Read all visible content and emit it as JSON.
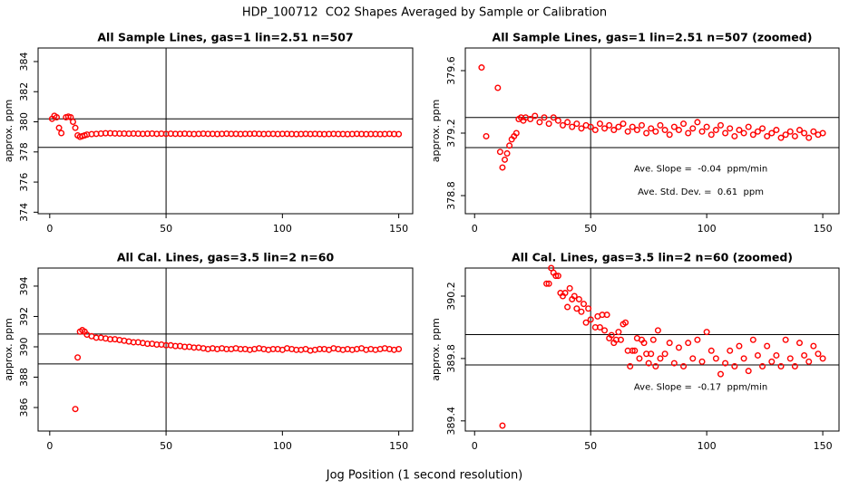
{
  "title": "HDP_100712  CO2 Shapes Averaged by Sample or Calibration",
  "x_label": "Jog Position (1 second resolution)",
  "chart_data": [
    {
      "type": "scatter",
      "title": "All Sample Lines, gas=1 lin=2.51 n=507",
      "y_label": "approx. ppm",
      "xlim": [
        -5,
        156
      ],
      "ylim": [
        373.9,
        384.9
      ],
      "xticks": [
        0,
        50,
        100,
        150
      ],
      "yticks": [
        374,
        376,
        378,
        380,
        382,
        384
      ],
      "reference_lines": {
        "v": [
          50
        ],
        "h": [
          380.2,
          378.3
        ]
      },
      "x": [
        1,
        2,
        3,
        4,
        5,
        7,
        8,
        9,
        10,
        11,
        12,
        13,
        14,
        15,
        16,
        18,
        20,
        22,
        24,
        26,
        28,
        30,
        32,
        34,
        36,
        38,
        40,
        42,
        44,
        46,
        48,
        50,
        52,
        54,
        56,
        58,
        60,
        62,
        64,
        66,
        68,
        70,
        72,
        74,
        76,
        78,
        80,
        82,
        84,
        86,
        88,
        90,
        92,
        94,
        96,
        98,
        100,
        102,
        104,
        106,
        108,
        110,
        112,
        114,
        116,
        118,
        120,
        122,
        124,
        126,
        128,
        130,
        132,
        134,
        136,
        138,
        140,
        142,
        144,
        146,
        148,
        150
      ],
      "series": [
        {
          "color": "#ff0000",
          "values": [
            380.2,
            380.4,
            380.3,
            379.6,
            379.25,
            380.3,
            380.35,
            380.3,
            380.0,
            379.6,
            379.1,
            379.0,
            379.05,
            379.1,
            379.15,
            379.18,
            379.2,
            379.22,
            379.24,
            379.24,
            379.23,
            379.22,
            379.22,
            379.21,
            379.22,
            379.21,
            379.2,
            379.21,
            379.22,
            379.2,
            379.21,
            379.2,
            379.21,
            379.2,
            379.2,
            379.21,
            379.2,
            379.19,
            379.2,
            379.21,
            379.2,
            379.2,
            379.19,
            379.2,
            379.21,
            379.2,
            379.2,
            379.19,
            379.2,
            379.2,
            379.21,
            379.2,
            379.19,
            379.2,
            379.2,
            379.19,
            379.2,
            379.2,
            379.19,
            379.18,
            379.19,
            379.2,
            379.19,
            379.2,
            379.19,
            379.18,
            379.19,
            379.2,
            379.19,
            379.19,
            379.18,
            379.19,
            379.2,
            379.19,
            379.18,
            379.19,
            379.19,
            379.18,
            379.19,
            379.2,
            379.19,
            379.18
          ]
        }
      ],
      "annotations": []
    },
    {
      "type": "scatter",
      "title": "All Sample Lines, gas=1 lin=2.51 n=507 (zoomed)",
      "y_label": "approx. ppm",
      "xlim": [
        -4,
        157
      ],
      "ylim": [
        378.684,
        379.745
      ],
      "xticks": [
        0,
        50,
        100,
        150
      ],
      "yticks": [
        378.8,
        379.2,
        379.6
      ],
      "reference_lines": {
        "v": [
          50
        ],
        "h": [
          379.3,
          379.107
        ]
      },
      "x": [
        3,
        5,
        10,
        11,
        12,
        13,
        14,
        15,
        16,
        17,
        18,
        19,
        20,
        21,
        22,
        24,
        26,
        28,
        30,
        32,
        34,
        36,
        38,
        40,
        42,
        44,
        46,
        48,
        50,
        52,
        54,
        56,
        58,
        60,
        62,
        64,
        66,
        68,
        70,
        72,
        74,
        76,
        78,
        80,
        82,
        84,
        86,
        88,
        90,
        92,
        94,
        96,
        98,
        100,
        102,
        104,
        106,
        108,
        110,
        112,
        114,
        116,
        118,
        120,
        122,
        124,
        126,
        128,
        130,
        132,
        134,
        136,
        138,
        140,
        142,
        144,
        146,
        148,
        150
      ],
      "series": [
        {
          "color": "#ff0000",
          "values": [
            379.62,
            379.18,
            379.49,
            379.08,
            378.98,
            379.03,
            379.07,
            379.12,
            379.16,
            379.18,
            379.2,
            379.29,
            379.3,
            379.28,
            379.3,
            379.29,
            379.31,
            379.27,
            379.3,
            379.26,
            379.3,
            379.28,
            379.25,
            379.27,
            379.24,
            379.26,
            379.23,
            379.25,
            379.24,
            379.22,
            379.26,
            379.23,
            379.25,
            379.22,
            379.24,
            379.26,
            379.21,
            379.24,
            379.22,
            379.25,
            379.2,
            379.23,
            379.21,
            379.25,
            379.22,
            379.19,
            379.24,
            379.22,
            379.26,
            379.2,
            379.23,
            379.27,
            379.21,
            379.24,
            379.19,
            379.22,
            379.25,
            379.2,
            379.23,
            379.18,
            379.22,
            379.2,
            379.24,
            379.19,
            379.21,
            379.23,
            379.18,
            379.2,
            379.22,
            379.17,
            379.19,
            379.21,
            379.18,
            379.22,
            379.2,
            379.17,
            379.21,
            379.19,
            379.2
          ]
        }
      ],
      "annotations": [
        "Ave. Slope =  -0.04  ppm/min",
        "Ave. Std. Dev. =  0.61  ppm"
      ]
    },
    {
      "type": "scatter",
      "title": "All Cal. Lines, gas=3.5 lin=2 n=60",
      "y_label": "approx. ppm",
      "xlim": [
        -5,
        156
      ],
      "ylim": [
        384.45,
        395.19
      ],
      "xticks": [
        0,
        50,
        100,
        150
      ],
      "yticks": [
        386,
        388,
        390,
        392,
        394
      ],
      "reference_lines": {
        "v": [
          50
        ],
        "h": [
          390.84,
          388.87
        ]
      },
      "x": [
        11,
        12,
        13,
        14,
        15,
        16,
        18,
        20,
        22,
        24,
        26,
        28,
        30,
        32,
        34,
        36,
        38,
        40,
        42,
        44,
        46,
        48,
        50,
        52,
        54,
        56,
        58,
        60,
        62,
        64,
        66,
        68,
        70,
        72,
        74,
        76,
        78,
        80,
        82,
        84,
        86,
        88,
        90,
        92,
        94,
        96,
        98,
        100,
        102,
        104,
        106,
        108,
        110,
        112,
        114,
        116,
        118,
        120,
        122,
        124,
        126,
        128,
        130,
        132,
        134,
        136,
        138,
        140,
        142,
        144,
        146,
        148,
        150
      ],
      "series": [
        {
          "color": "#ff0000",
          "values": [
            385.9,
            389.3,
            391.0,
            391.1,
            391.0,
            390.8,
            390.7,
            390.6,
            390.6,
            390.55,
            390.5,
            390.5,
            390.45,
            390.4,
            390.35,
            390.3,
            390.3,
            390.25,
            390.2,
            390.2,
            390.15,
            390.15,
            390.1,
            390.1,
            390.05,
            390.05,
            390.0,
            390.0,
            389.95,
            389.95,
            389.9,
            389.85,
            389.9,
            389.85,
            389.9,
            389.85,
            389.85,
            389.9,
            389.85,
            389.85,
            389.8,
            389.85,
            389.9,
            389.85,
            389.8,
            389.85,
            389.85,
            389.8,
            389.9,
            389.85,
            389.8,
            389.8,
            389.85,
            389.75,
            389.8,
            389.85,
            389.85,
            389.8,
            389.9,
            389.85,
            389.8,
            389.85,
            389.8,
            389.85,
            389.9,
            389.8,
            389.85,
            389.8,
            389.85,
            389.9,
            389.85,
            389.8,
            389.85
          ]
        }
      ],
      "annotations": []
    },
    {
      "type": "scatter",
      "title": "All Cal. Lines, gas=3.5 lin=2 n=60 (zoomed)",
      "y_label": "approx. ppm",
      "xlim": [
        -4,
        157
      ],
      "ylim": [
        389.335,
        390.38
      ],
      "xticks": [
        0,
        50,
        100,
        150
      ],
      "yticks": [
        389.4,
        389.8,
        390.2
      ],
      "reference_lines": {
        "v": [
          50
        ],
        "h": [
          389.953,
          389.759
        ]
      },
      "x": [
        12,
        31,
        32,
        33,
        34,
        35,
        36,
        37,
        38,
        39,
        40,
        41,
        42,
        43,
        44,
        45,
        46,
        47,
        48,
        49,
        50,
        52,
        53,
        54,
        55,
        56,
        57,
        58,
        59,
        60,
        61,
        62,
        63,
        64,
        65,
        66,
        67,
        68,
        69,
        70,
        71,
        72,
        73,
        74,
        75,
        76,
        77,
        78,
        79,
        80,
        82,
        84,
        86,
        88,
        90,
        92,
        94,
        96,
        98,
        100,
        102,
        104,
        106,
        108,
        110,
        112,
        114,
        116,
        118,
        120,
        122,
        124,
        126,
        128,
        130,
        132,
        134,
        136,
        138,
        140,
        142,
        144,
        146,
        148,
        150
      ],
      "series": [
        {
          "color": "#ff0000",
          "values": [
            389.37,
            390.28,
            390.28,
            390.38,
            390.35,
            390.33,
            390.33,
            390.22,
            390.2,
            390.22,
            390.13,
            390.25,
            390.18,
            390.2,
            390.12,
            390.18,
            390.1,
            390.15,
            390.03,
            390.12,
            390.05,
            390.0,
            390.07,
            390.0,
            390.08,
            389.98,
            390.08,
            389.93,
            389.95,
            389.9,
            389.92,
            389.97,
            389.92,
            390.02,
            390.03,
            389.85,
            389.75,
            389.85,
            389.85,
            389.93,
            389.8,
            389.92,
            389.9,
            389.83,
            389.77,
            389.83,
            389.92,
            389.75,
            389.98,
            389.8,
            389.83,
            389.9,
            389.77,
            389.87,
            389.75,
            389.9,
            389.8,
            389.92,
            389.78,
            389.97,
            389.85,
            389.8,
            389.7,
            389.77,
            389.85,
            389.75,
            389.88,
            389.8,
            389.72,
            389.92,
            389.82,
            389.75,
            389.88,
            389.78,
            389.82,
            389.75,
            389.92,
            389.8,
            389.75,
            389.9,
            389.82,
            389.78,
            389.88,
            389.83,
            389.8
          ]
        }
      ],
      "annotations": [
        "Ave. Slope =  -0.17  ppm/min"
      ]
    }
  ]
}
